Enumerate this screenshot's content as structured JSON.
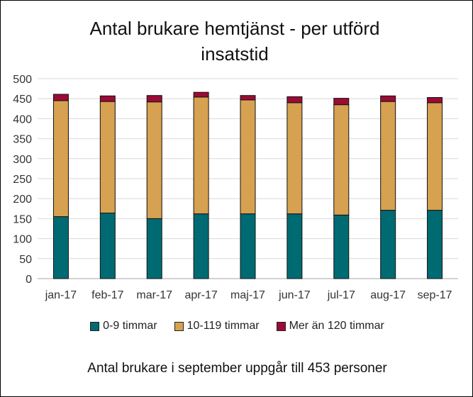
{
  "title_line1": "Antal brukare hemtjänst - per utförd",
  "title_line2": "insatstid",
  "footer": "Antal brukare i september uppgår till 453 personer",
  "colors": {
    "s1": "#006a73",
    "s2": "#d6a150",
    "s3": "#9c0b36"
  },
  "chart_data": {
    "type": "bar",
    "stacked": true,
    "title": "Antal brukare hemtjänst - per utförd insatstid",
    "categories": [
      "jan-17",
      "feb-17",
      "mar-17",
      "apr-17",
      "maj-17",
      "jun-17",
      "jul-17",
      "aug-17",
      "sep-17"
    ],
    "series": [
      {
        "name": "0-9 timmar",
        "values": [
          155,
          164,
          150,
          162,
          162,
          162,
          159,
          171,
          171
        ]
      },
      {
        "name": "10-119 timmar",
        "values": [
          290,
          279,
          292,
          292,
          285,
          278,
          276,
          272,
          269
        ]
      },
      {
        "name": "Mer än 120 timmar",
        "values": [
          16,
          14,
          16,
          12,
          11,
          15,
          16,
          14,
          13
        ]
      }
    ],
    "ylim": [
      0,
      500
    ],
    "yticks": [
      0,
      50,
      100,
      150,
      200,
      250,
      300,
      350,
      400,
      450,
      500
    ],
    "grid": true,
    "legend": "bottom"
  }
}
